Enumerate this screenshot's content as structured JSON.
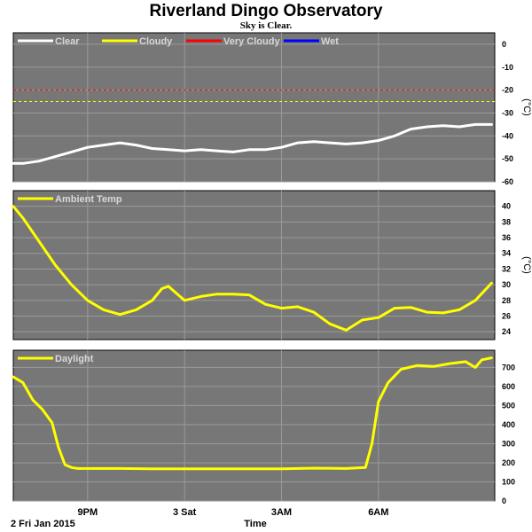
{
  "header": {
    "title": "Riverland Dingo Observatory",
    "subtitle": "Sky is Clear."
  },
  "colors": {
    "panel_bg": "#777777",
    "grid": "#9a9a9a",
    "clear": "#ffffff",
    "cloudy": "#ffff00",
    "very_cloudy": "#ff0000",
    "wet": "#0000ff",
    "line": "#ffff00"
  },
  "xaxis": {
    "date_label": "2 Fri Jan 2015",
    "label": "Time",
    "ticks": [
      {
        "label": "9PM",
        "hour": 21
      },
      {
        "label": "3 Sat",
        "hour": 24
      },
      {
        "label": "3AM",
        "hour": 27
      },
      {
        "label": "6AM",
        "hour": 30
      }
    ],
    "range_hours": [
      18.7,
      33.6
    ]
  },
  "chart_data": [
    {
      "type": "line",
      "name": "sky",
      "legend": [
        {
          "label": "Clear",
          "color": "#ffffff"
        },
        {
          "label": "Cloudy",
          "color": "#ffff00"
        },
        {
          "label": "Very Cloudy",
          "color": "#ff0000"
        },
        {
          "label": "Wet",
          "color": "#0000ff"
        }
      ],
      "ylabel": "(°C)",
      "ylim": [
        -60,
        5
      ],
      "yticks": [
        0,
        -10,
        -20,
        -30,
        -40,
        -50,
        -60
      ],
      "thresholds": [
        {
          "value": -20,
          "color": "#ff0000"
        },
        {
          "value": -25,
          "color": "#ffff00"
        }
      ],
      "series": [
        {
          "name": "Clear",
          "color": "#ffffff",
          "x": [
            18.7,
            19.0,
            19.5,
            20.0,
            20.5,
            21.0,
            21.5,
            22.0,
            22.5,
            23.0,
            23.5,
            24.0,
            24.5,
            25.0,
            25.5,
            26.0,
            26.5,
            27.0,
            27.5,
            28.0,
            28.5,
            29.0,
            29.5,
            30.0,
            30.5,
            31.0,
            31.5,
            32.0,
            32.5,
            33.0,
            33.5
          ],
          "y": [
            -52,
            -52,
            -51,
            -49,
            -47,
            -45,
            -44,
            -43,
            -44,
            -45.5,
            -46,
            -46.5,
            -46,
            -46.5,
            -47,
            -46,
            -46,
            -45,
            -43,
            -42.5,
            -43,
            -43.5,
            -43,
            -42,
            -40,
            -37,
            -36,
            -35.5,
            -36,
            -35,
            -35
          ]
        }
      ]
    },
    {
      "type": "line",
      "name": "ambient",
      "legend": [
        {
          "label": "Ambient Temp",
          "color": "#ffff00"
        }
      ],
      "ylabel": "(°C)",
      "ylim": [
        23,
        42
      ],
      "yticks": [
        24,
        26,
        28,
        30,
        32,
        34,
        36,
        38,
        40
      ],
      "series": [
        {
          "name": "Ambient Temp",
          "color": "#ffff00",
          "x": [
            18.7,
            19.0,
            19.5,
            20.0,
            20.5,
            21.0,
            21.5,
            22.0,
            22.5,
            23.0,
            23.3,
            23.5,
            24.0,
            24.5,
            25.0,
            25.5,
            26.0,
            26.5,
            27.0,
            27.5,
            28.0,
            28.5,
            29.0,
            29.5,
            30.0,
            30.5,
            31.0,
            31.5,
            32.0,
            32.5,
            33.0,
            33.5
          ],
          "y": [
            40,
            38.5,
            35.5,
            32.5,
            30,
            28,
            26.8,
            26.2,
            26.8,
            28,
            29.5,
            29.8,
            28,
            28.5,
            28.8,
            28.8,
            28.7,
            27.5,
            27,
            27.2,
            26.5,
            25,
            24.2,
            25.5,
            25.8,
            27,
            27.1,
            26.5,
            26.4,
            26.8,
            28,
            30.2
          ]
        }
      ]
    },
    {
      "type": "line",
      "name": "daylight",
      "legend": [
        {
          "label": "Daylight",
          "color": "#ffff00"
        }
      ],
      "ylabel": "",
      "ylim": [
        0,
        790
      ],
      "yticks": [
        0,
        100,
        200,
        300,
        400,
        500,
        600,
        700
      ],
      "series": [
        {
          "name": "Daylight",
          "color": "#ffff00",
          "x": [
            18.7,
            19.0,
            19.3,
            19.6,
            19.9,
            20.1,
            20.3,
            20.5,
            20.7,
            21.0,
            22.0,
            23.0,
            24.0,
            25.0,
            26.0,
            27.0,
            28.0,
            29.0,
            29.6,
            29.8,
            30.0,
            30.3,
            30.7,
            31.2,
            31.7,
            32.2,
            32.7,
            33.0,
            33.2,
            33.5
          ],
          "y": [
            650,
            620,
            530,
            480,
            410,
            280,
            190,
            175,
            170,
            170,
            170,
            168,
            168,
            168,
            168,
            168,
            172,
            170,
            175,
            300,
            520,
            620,
            690,
            710,
            705,
            720,
            730,
            700,
            740,
            750
          ]
        }
      ]
    }
  ]
}
